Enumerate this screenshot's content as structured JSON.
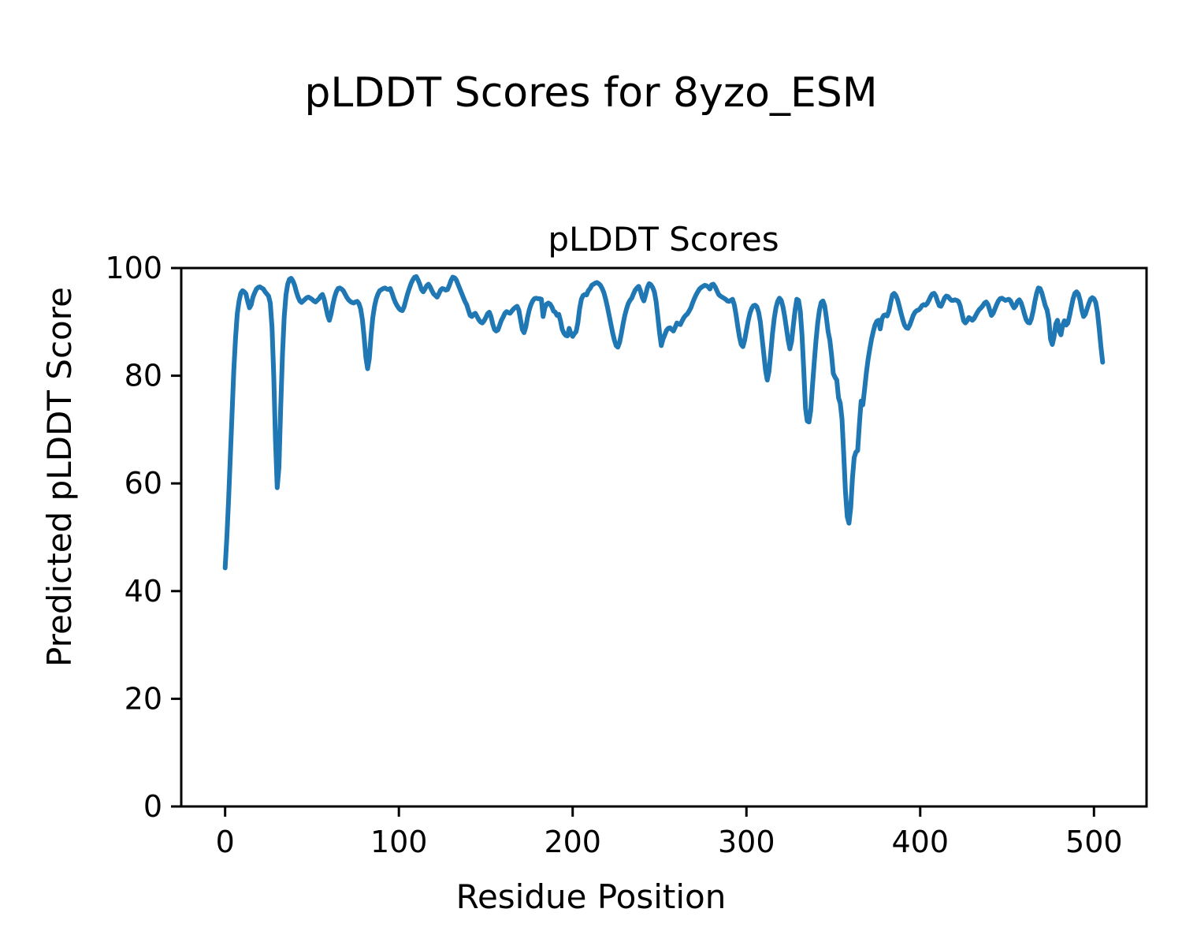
{
  "figure": {
    "suptitle": "pLDDT Scores for 8yzo_ESM"
  },
  "chart_data": {
    "type": "line",
    "title": "pLDDT Scores",
    "xlabel": "Residue Position",
    "ylabel": "Predicted pLDDT Score",
    "legend": null,
    "grid": false,
    "x_ticks": [
      0,
      100,
      200,
      300,
      400,
      500
    ],
    "y_ticks": [
      0,
      20,
      40,
      60,
      80,
      100
    ],
    "xlim": [
      -25.25,
      530.25
    ],
    "ylim": [
      0,
      100
    ],
    "line_color": "#1f77b4",
    "series": [
      {
        "name": "pLDDT",
        "x_start": 0,
        "x_step": 1,
        "values": [
          44.3,
          50,
          57,
          65,
          73,
          81,
          87,
          91.5,
          93.8,
          95.3,
          95.8,
          95.6,
          95.2,
          93.8,
          92.6,
          93.2,
          94.6,
          95.4,
          96.1,
          96.4,
          96.5,
          96.3,
          96.1,
          95.6,
          95.2,
          94.8,
          93.5,
          89,
          80,
          68,
          59.2,
          63,
          74,
          84,
          91,
          95,
          97,
          97.9,
          98.1,
          97.6,
          96.8,
          95.6,
          94.6,
          93.9,
          93.6,
          93.9,
          94.2,
          94.5,
          94.6,
          94.4,
          94.2,
          93.9,
          93.7,
          94,
          94.3,
          94.8,
          95.1,
          94.2,
          92.7,
          91.2,
          90.3,
          91.5,
          93.2,
          94.6,
          95.6,
          96.2,
          96.3,
          96.1,
          95.8,
          95.2,
          94.6,
          94.1,
          93.8,
          93.6,
          93.5,
          93.7,
          93.8,
          93.4,
          92.4,
          90.4,
          87.2,
          83.4,
          81.3,
          83.2,
          87.5,
          90.8,
          92.9,
          94.3,
          95.2,
          95.8,
          96,
          96.2,
          96.3,
          96.1,
          96,
          96.2,
          95.4,
          94.4,
          93.6,
          93,
          92.5,
          92.2,
          92.1,
          92.8,
          94,
          95.2,
          96.2,
          97.1,
          97.8,
          98.3,
          98.4,
          97.8,
          97,
          96,
          95.6,
          96.1,
          96.7,
          97,
          96.5,
          95.8,
          95.2,
          94.9,
          94.6,
          95.2,
          95.9,
          96.2,
          96.1,
          95.9,
          96,
          96.8,
          97.7,
          98.3,
          98.2,
          97.8,
          97,
          96.2,
          95.4,
          94.6,
          93.8,
          93.2,
          92.2,
          91.2,
          91,
          91.4,
          91.6,
          91,
          90.4,
          90,
          89.8,
          90.2,
          90.8,
          91.5,
          91.8,
          91,
          89.6,
          88.6,
          88.3,
          88.5,
          89.4,
          90.3,
          90.9,
          91.6,
          91.9,
          91.7,
          91.6,
          92,
          92.4,
          92.7,
          92.9,
          92.2,
          90.4,
          88.6,
          88,
          89,
          90.8,
          92.2,
          93.2,
          93.9,
          94.3,
          94.4,
          94.3,
          94.3,
          94.2,
          91,
          92.6,
          93.3,
          93.5,
          93.3,
          92.8,
          92,
          91.8,
          91.2,
          91.4,
          90.2,
          88.6,
          87.9,
          87.5,
          87.4,
          88.8,
          87.8,
          87.3,
          87.8,
          88.2,
          89.8,
          92.4,
          94.2,
          94.9,
          95.1,
          95,
          95.8,
          96.2,
          96.8,
          97,
          97.2,
          97.3,
          97.1,
          96.8,
          96.2,
          95.4,
          94.2,
          92.8,
          91.2,
          89.6,
          88,
          86.6,
          85.6,
          85.3,
          86.2,
          87.8,
          89.6,
          91.2,
          92.4,
          93.4,
          94,
          94.4,
          95.2,
          95.9,
          96.3,
          96.6,
          95.8,
          94.6,
          93.9,
          95,
          96.4,
          97.1,
          96.9,
          96.4,
          95.6,
          93.8,
          91,
          88,
          85.6,
          86.8,
          87.6,
          88.4,
          88.8,
          88.9,
          88.6,
          88.3,
          89,
          89.8,
          89.6,
          89.5,
          90.2,
          90.8,
          91.2,
          91.5,
          92,
          92.6,
          93.5,
          94.3,
          95,
          95.6,
          96.1,
          96.4,
          96.6,
          96.8,
          96.7,
          96.5,
          96.1,
          96.9,
          97,
          96.5,
          95.8,
          95.1,
          94.8,
          94.6,
          94.4,
          94.2,
          93.9,
          93.8,
          94,
          94.2,
          93.2,
          91.4,
          89.2,
          87.2,
          85.8,
          85.4,
          86.6,
          88.4,
          90.2,
          91.6,
          92.5,
          93,
          93.1,
          92.8,
          91.8,
          90,
          87,
          84,
          81,
          79.2,
          80.8,
          84.2,
          87.8,
          90.6,
          92.6,
          93.8,
          94.4,
          94,
          92.8,
          91,
          88.8,
          86.6,
          85,
          86.4,
          89.4,
          92.2,
          94.2,
          94,
          92,
          87.5,
          81,
          74,
          71.6,
          71.4,
          73.5,
          78,
          82.5,
          86.5,
          89.8,
          92.2,
          93.6,
          93.9,
          93,
          90.8,
          88.2,
          86.6,
          83.8,
          80.4,
          79.7,
          79.2,
          75.9,
          74.9,
          72,
          65.5,
          58.5,
          53.8,
          52.6,
          55.5,
          61,
          64.8,
          65.8,
          66.1,
          71,
          75.3,
          74.6,
          77.5,
          80.5,
          83,
          85,
          86.8,
          88.2,
          89.4,
          90.1,
          90.3,
          88.7,
          90.6,
          91.2,
          91.3,
          91.1,
          92,
          93.6,
          95,
          95.3,
          94.9,
          94.1,
          92.9,
          91.6,
          90.4,
          89.4,
          88.9,
          88.8,
          89.4,
          90.3,
          91.2,
          91.8,
          92.1,
          92.2,
          92.5,
          93,
          93.2,
          93.1,
          93.4,
          94,
          94.7,
          95.2,
          95.3,
          94.8,
          93.8,
          93,
          92.9,
          93.6,
          94.4,
          94.8,
          94.7,
          94.3,
          94,
          94,
          94.1,
          94,
          93.8,
          93,
          91.6,
          90.2,
          89.8,
          90.2,
          90.8,
          90.6,
          90.3,
          90.6,
          91.2,
          91.8,
          92.3,
          92.6,
          93,
          93.5,
          93.7,
          93.2,
          92.2,
          91.2,
          91.6,
          92.4,
          93.2,
          93.9,
          94.3,
          94.4,
          94.2,
          94,
          94.1,
          94.2,
          93.9,
          93.2,
          92.6,
          93,
          93.8,
          94.1,
          93.6,
          92.6,
          91.4,
          90.4,
          89.9,
          89.8,
          90.6,
          92,
          93.8,
          95.3,
          96.3,
          96.2,
          95.4,
          94.2,
          93,
          92.2,
          90.4,
          86.8,
          85.8,
          87.2,
          89.6,
          90.3,
          88.3,
          87.6,
          89.4,
          90.2,
          89.4,
          89.8,
          91.2,
          92.8,
          94.3,
          95.3,
          95.6,
          95.2,
          94,
          92.2,
          91,
          91.4,
          92.4,
          93.4,
          94.2,
          94.5,
          94.3,
          93.6,
          91.8,
          88.8,
          85.4,
          82.5
        ]
      }
    ]
  }
}
